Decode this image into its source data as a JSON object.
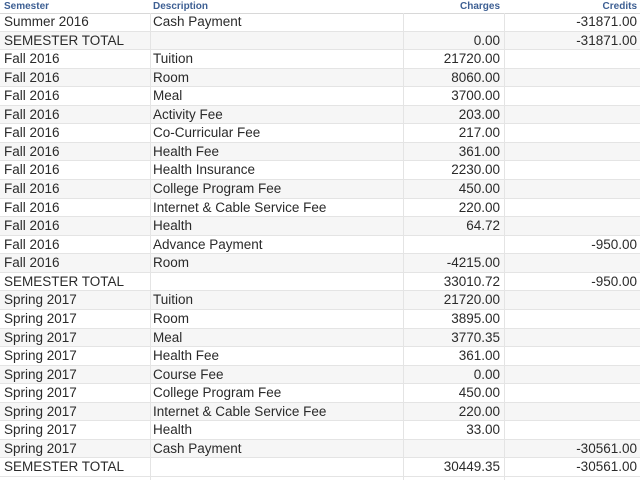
{
  "table": {
    "header": [
      "Semester",
      "Description",
      "Charges",
      "Credits"
    ],
    "rows": [
      [
        "Summer 2016",
        "Cash Payment",
        null,
        "-31871.00"
      ],
      [
        "SEMESTER TOTAL",
        null,
        "0.00",
        "-31871.00"
      ],
      [
        "Fall 2016",
        "Tuition",
        "21720.00",
        null
      ],
      [
        "Fall 2016",
        "Room",
        "8060.00",
        null
      ],
      [
        "Fall 2016",
        "Meal",
        "3700.00",
        null
      ],
      [
        "Fall 2016",
        "Activity Fee",
        "203.00",
        null
      ],
      [
        "Fall 2016",
        "Co-Curricular Fee",
        "217.00",
        null
      ],
      [
        "Fall 2016",
        "Health Fee",
        "361.00",
        null
      ],
      [
        "Fall 2016",
        "Health Insurance",
        "2230.00",
        null
      ],
      [
        "Fall 2016",
        "College Program Fee",
        "450.00",
        null
      ],
      [
        "Fall 2016",
        "Internet & Cable Service Fee",
        "220.00",
        null
      ],
      [
        "Fall 2016",
        "Health",
        "64.72",
        null
      ],
      [
        "Fall 2016",
        "Advance Payment",
        null,
        "-950.00"
      ],
      [
        "Fall 2016",
        "Room",
        "-4215.00",
        null
      ],
      [
        "SEMESTER TOTAL",
        null,
        "33010.72",
        "-950.00"
      ],
      [
        "Spring 2017",
        "Tuition",
        "21720.00",
        null
      ],
      [
        "Spring 2017",
        "Room",
        "3895.00",
        null
      ],
      [
        "Spring 2017",
        "Meal",
        "3770.35",
        null
      ],
      [
        "Spring 2017",
        "Health Fee",
        "361.00",
        null
      ],
      [
        "Spring 2017",
        "Course Fee",
        "0.00",
        null
      ],
      [
        "Spring 2017",
        "College Program Fee",
        "450.00",
        null
      ],
      [
        "Spring 2017",
        "Internet & Cable Service Fee",
        "220.00",
        null
      ],
      [
        "Spring 2017",
        "Health",
        "33.00",
        null
      ],
      [
        "Spring 2017",
        "Cash Payment",
        null,
        "-30561.00"
      ],
      [
        "SEMESTER TOTAL",
        null,
        "30449.35",
        "-30561.00"
      ]
    ]
  }
}
